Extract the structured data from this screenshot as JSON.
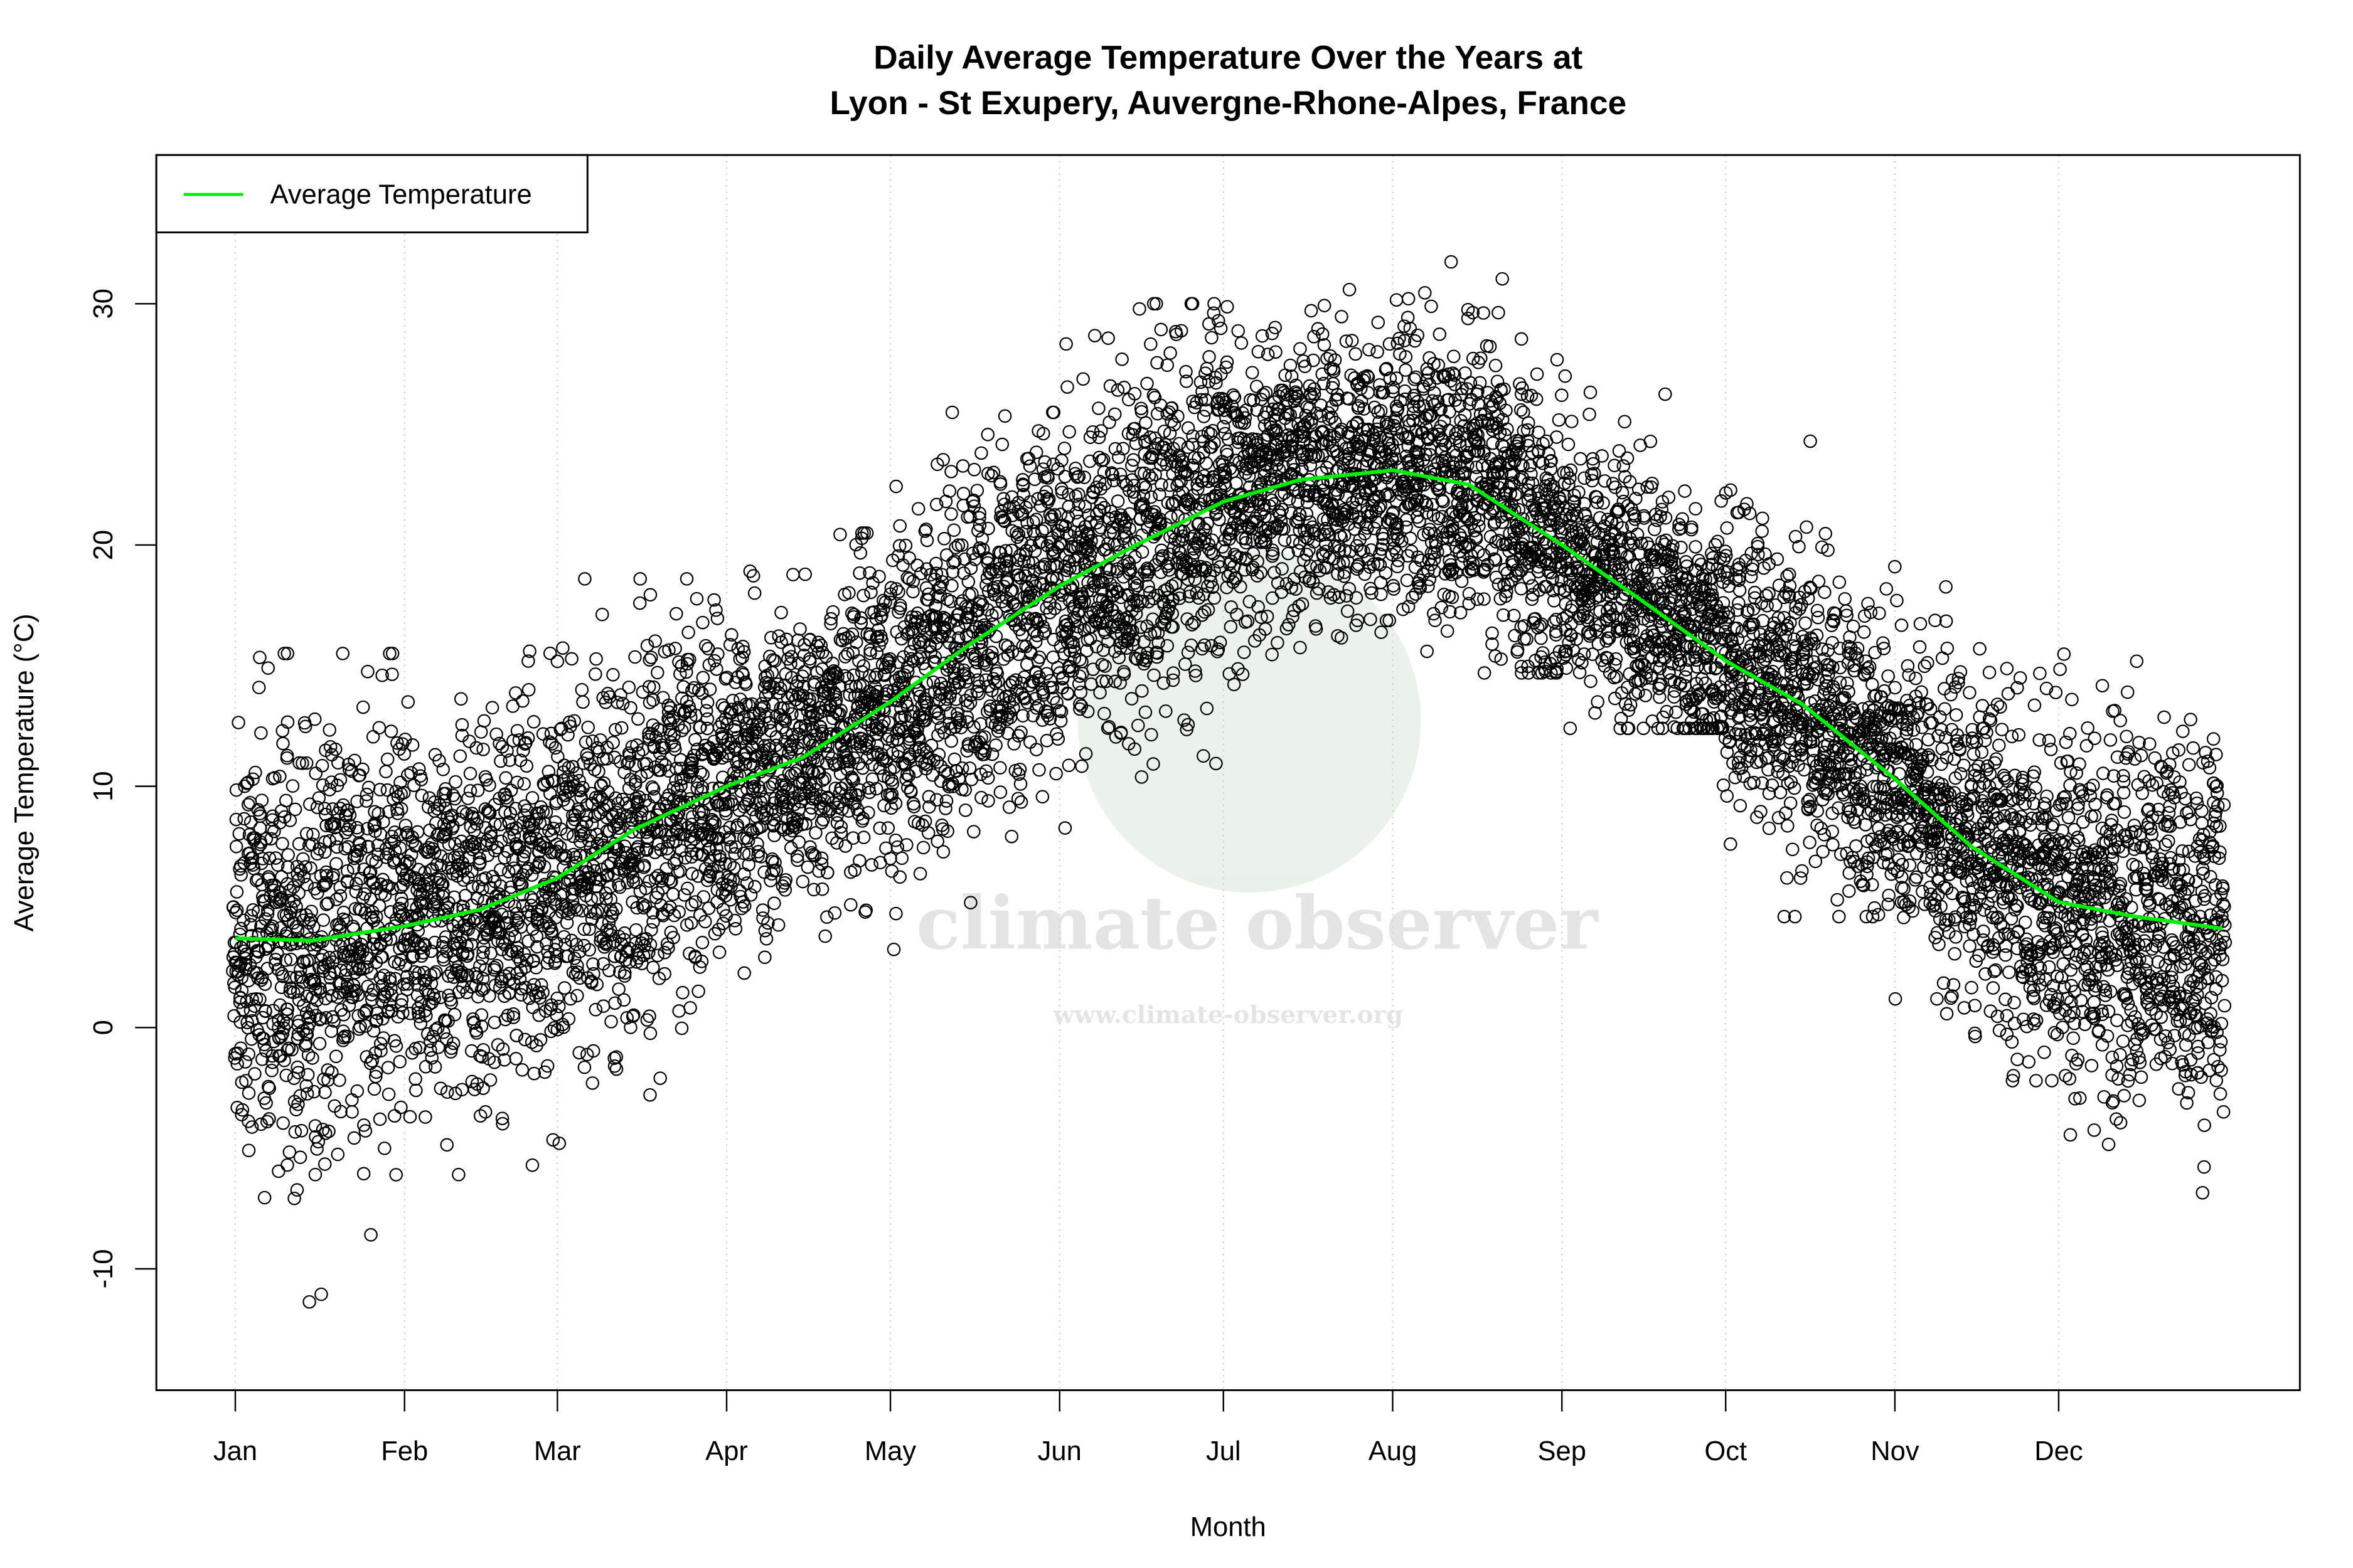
{
  "chart_data": {
    "type": "scatter",
    "title": "Daily Average Temperature Over the Years at",
    "subtitle": "Lyon - St Exupery, Auvergne-Rhone-Alpes, France",
    "xlabel": "Month",
    "ylabel": "Average Temperature (°C)",
    "x_tick_labels": [
      "Jan",
      "Feb",
      "Mar",
      "Apr",
      "May",
      "Jun",
      "Jul",
      "Aug",
      "Sep",
      "Oct",
      "Nov",
      "Dec"
    ],
    "x_tick_days": [
      1,
      32,
      60,
      91,
      121,
      152,
      182,
      213,
      244,
      274,
      305,
      335
    ],
    "xlim_days": [
      1,
      365
    ],
    "ylim": [
      -15,
      36
    ],
    "y_ticks": [
      -10,
      0,
      10,
      20,
      30
    ],
    "grid": "vertical dotted at month ticks",
    "legend": {
      "position": "top-left",
      "entries": [
        {
          "label": "Average Temperature",
          "color": "#00ee00"
        }
      ]
    },
    "series": [
      {
        "name": "Average Temperature",
        "type": "line",
        "color": "#00ee00",
        "day": [
          1,
          15,
          32,
          46,
          60,
          74,
          91,
          105,
          121,
          135,
          152,
          166,
          182,
          196,
          213,
          227,
          244,
          258,
          274,
          288,
          305,
          319,
          335,
          349,
          365
        ],
        "value": [
          3.7,
          3.6,
          4.2,
          4.9,
          6.2,
          8.2,
          10.0,
          11.2,
          13.5,
          15.8,
          18.3,
          20.0,
          21.8,
          22.7,
          23.1,
          22.5,
          20.0,
          17.8,
          15.2,
          13.4,
          10.3,
          7.5,
          5.2,
          4.6,
          4.1
        ]
      },
      {
        "type": "scatter",
        "marker": "open circle",
        "color": "#000000",
        "description_of_daily_values": "daily observations over many years",
        "approx_min_by_month": [
          -13.2,
          -9.2,
          -4.8,
          0.9,
          2.7,
          6.9,
          12.3,
          14.7,
          12.4,
          4.6,
          -2.2,
          -7.6
        ],
        "approx_max_by_month": [
          15.5,
          15.6,
          18.6,
          20.5,
          25.5,
          30.0,
          31.0,
          34.2,
          27.0,
          24.3,
          19.1,
          16.9
        ]
      }
    ]
  },
  "watermark": {
    "name": "climate observer",
    "url": "www.climate-observer.org"
  }
}
